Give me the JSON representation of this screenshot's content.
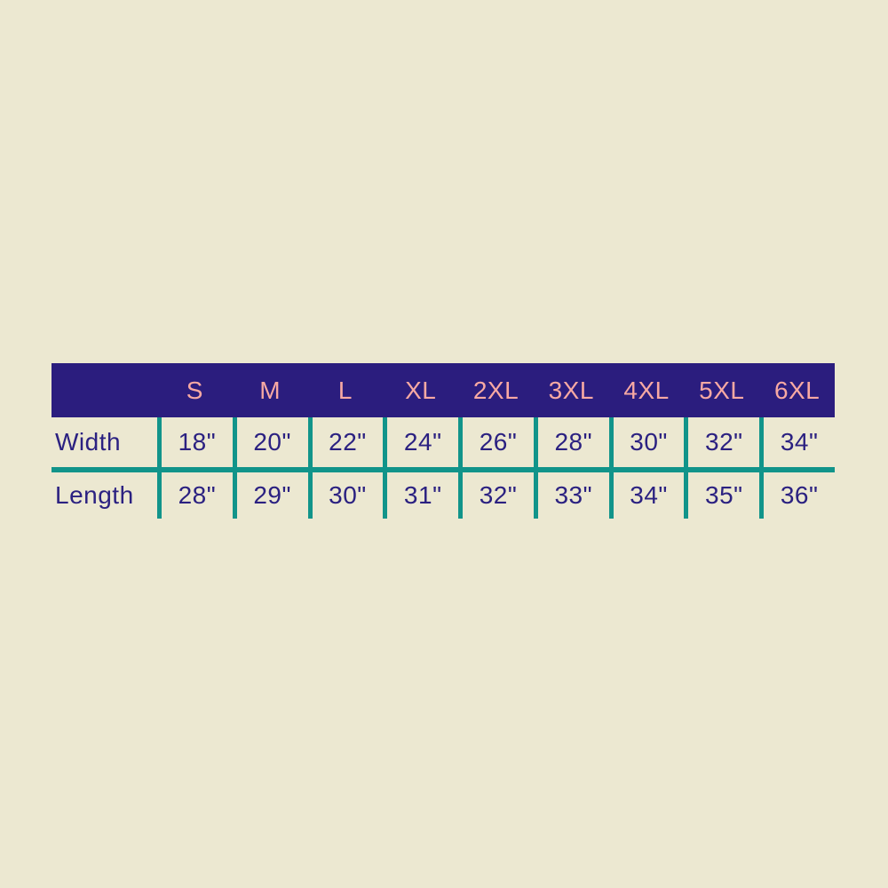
{
  "colors": {
    "bg": "#ece8d1",
    "header_bg": "#2b1d7e",
    "header_text": "#f7a9a3",
    "body_text": "#2b2181",
    "line": "#11948a"
  },
  "table": {
    "sizes": [
      "S",
      "M",
      "L",
      "XL",
      "2XL",
      "3XL",
      "4XL",
      "5XL",
      "6XL"
    ],
    "width_label": "Width",
    "width_values": [
      "18\"",
      "20\"",
      "22\"",
      "24\"",
      "26\"",
      "28\"",
      "30\"",
      "32\"",
      "34\""
    ],
    "length_label": "Length",
    "length_values": [
      "28\"",
      "29\"",
      "30\"",
      "31\"",
      "32\"",
      "33\"",
      "34\"",
      "35\"",
      "36\""
    ]
  },
  "chart_data": {
    "type": "table",
    "title": "",
    "columns": [
      "S",
      "M",
      "L",
      "XL",
      "2XL",
      "3XL",
      "4XL",
      "5XL",
      "6XL"
    ],
    "rows": [
      {
        "label": "Width",
        "values_inches": [
          18,
          20,
          22,
          24,
          26,
          28,
          30,
          32,
          34
        ]
      },
      {
        "label": "Length",
        "values_inches": [
          28,
          29,
          30,
          31,
          32,
          33,
          34,
          35,
          36
        ]
      }
    ],
    "layout_hints": {
      "header_background": "#2b1d7e",
      "header_text_color": "#f7a9a3",
      "body_text_color": "#2b2181",
      "grid_line_color": "#11948a",
      "page_background": "#ece8d1",
      "grid": "vertical separators between columns, single horizontal rule between rows, no outer border"
    }
  }
}
